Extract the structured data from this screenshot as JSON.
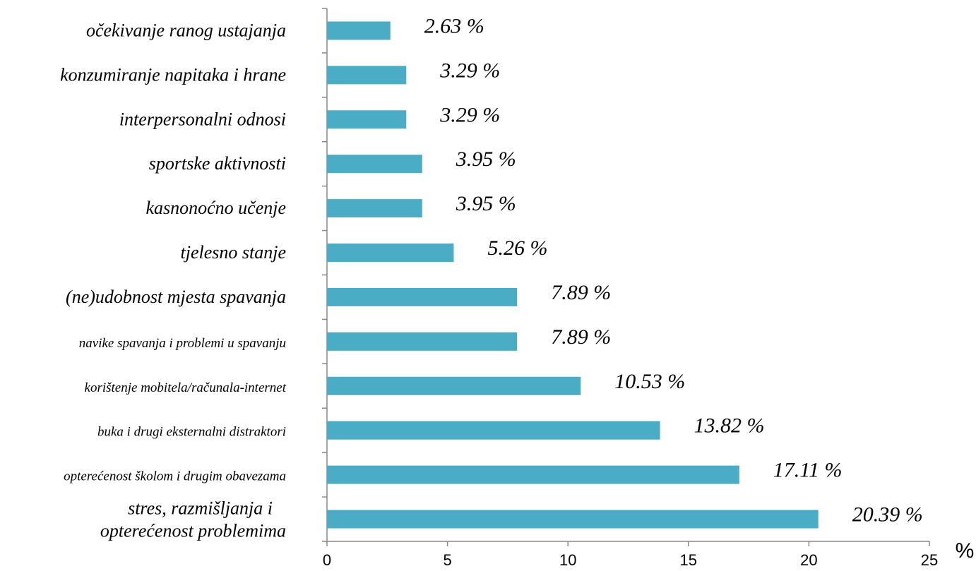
{
  "chart_data": {
    "type": "bar",
    "orientation": "horizontal",
    "categories": [
      "očekivanje ranog ustajanja",
      "konzumiranje napitaka i hrane",
      "interpersonalni odnosi",
      "sportske aktivnosti",
      "kasnonoćno učenje",
      "tjelesno stanje",
      "(ne)udobnost mjesta spavanja",
      "navike spavanja i problemi u spavanju",
      "korištenje mobitela/računala-internet",
      "buka i drugi eksternalni distraktori",
      "opterećenost školom i drugim obavezama",
      "stres, razmišljanja i\nopterećenost problemima"
    ],
    "values": [
      2.63,
      3.29,
      3.29,
      3.95,
      3.95,
      5.26,
      7.89,
      7.89,
      10.53,
      13.82,
      17.11,
      20.39
    ],
    "value_labels": [
      "2.63 %",
      "3.29 %",
      "3.29 %",
      "3.95 %",
      "3.95 %",
      "5.26 %",
      "7.89 %",
      "7.89 %",
      "10.53 %",
      "13.82 %",
      "17.11 %",
      "20.39 %"
    ],
    "color": "#4bacc6",
    "xlim": [
      0,
      25
    ],
    "xticks": [
      0,
      5,
      10,
      15,
      20,
      25
    ],
    "x_label": "%"
  }
}
